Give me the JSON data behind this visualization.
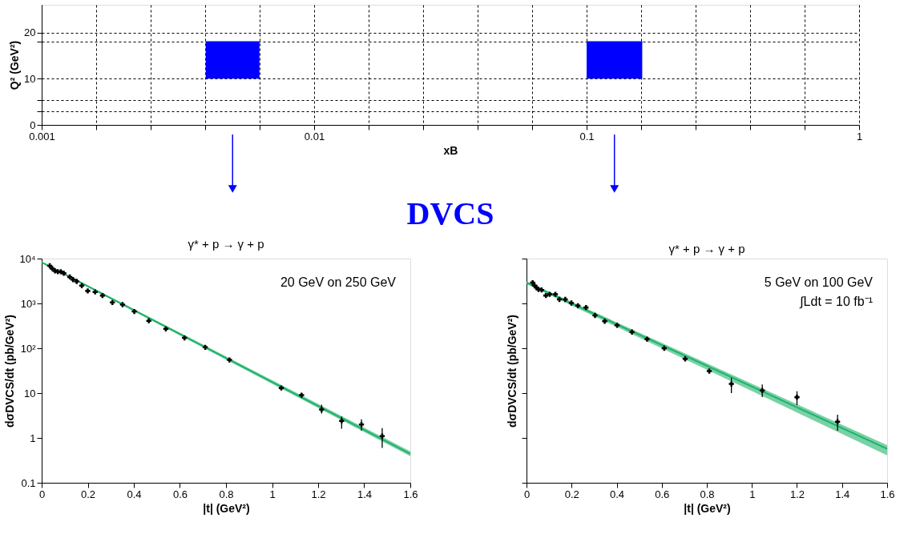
{
  "chart_data": [
    {
      "type": "bar",
      "xlabel": "xB",
      "ylabel": "Q² (GeV²)",
      "log": "x",
      "grid": true,
      "color": "#0000ff",
      "x": [
        0.00502,
        0.1265
      ],
      "base": [
        10,
        10
      ],
      "values": [
        8,
        8
      ],
      "xerrors": [
        [
          0.004,
          0.0063
        ],
        [
          0.1,
          0.16
        ]
      ],
      "xlim": [
        0.001,
        1
      ],
      "ylim": [
        0,
        26
      ],
      "xticks": [
        0.001,
        {
          "value": 0.00158,
          "label": null
        },
        {
          "value": 0.00251,
          "label": null
        },
        {
          "value": 0.00398,
          "label": null
        },
        {
          "value": 0.00631,
          "label": null
        },
        0.01,
        {
          "value": 0.0158,
          "label": null
        },
        {
          "value": 0.0251,
          "label": null
        },
        {
          "value": 0.0398,
          "label": null
        },
        {
          "value": 0.0631,
          "label": null
        },
        0.1,
        {
          "value": 0.158,
          "label": null
        },
        {
          "value": 0.251,
          "label": null
        },
        {
          "value": 0.398,
          "label": null
        },
        {
          "value": 0.631,
          "label": null
        },
        1
      ],
      "yticks": [
        0,
        {
          "value": 3,
          "label": null
        },
        {
          "value": 5.3,
          "label": null
        },
        10,
        {
          "value": 18,
          "label": null
        },
        20
      ],
      "annotations": [
        "DVCS"
      ]
    },
    {
      "type": "scatter",
      "title": "γ* + p → γ + p",
      "xlabel": "|t| (GeV²)",
      "ylabel": "dσDVCS/dt (pb/GeV²)",
      "log": "y",
      "xlim": [
        0,
        1.6
      ],
      "ylim": [
        0.1,
        10000
      ],
      "xticks": [
        0,
        0.2,
        0.4,
        0.6,
        0.8,
        1,
        1.2,
        1.4,
        1.6
      ],
      "yticks": [
        0.1,
        1,
        10,
        {
          "value": 100,
          "label": "10²"
        },
        {
          "value": 1000,
          "label": "10³"
        },
        {
          "value": 10000,
          "label": "10⁴"
        }
      ],
      "annotations": [
        "20 GeV on 250 GeV"
      ],
      "series": [
        {
          "type": "line",
          "color": "#1fb36a",
          "x": [
            0,
            1.6
          ],
          "values": [
            8300,
            0.44
          ],
          "lower": [
            8000,
            0.39
          ],
          "upper": [
            8600,
            0.5
          ]
        },
        {
          "type": "scatter",
          "marker": "cross",
          "color": "#000000",
          "x": [
            0.035,
            0.046,
            0.058,
            0.07,
            0.083,
            0.096,
            0.122,
            0.136,
            0.152,
            0.174,
            0.2,
            0.232,
            0.264,
            0.307,
            0.351,
            0.402,
            0.465,
            0.539,
            0.62,
            0.71,
            0.815,
            1.04,
            1.128,
            1.215,
            1.302,
            1.388,
            1.478
          ],
          "values": [
            6900,
            6000,
            5300,
            5100,
            5100,
            4700,
            3900,
            3400,
            3100,
            2500,
            1900,
            1800,
            1500,
            1050,
            940,
            660,
            410,
            270,
            170,
            105,
            55,
            13,
            9,
            4.3,
            2.4,
            2.0,
            1.1
          ],
          "errors": [
            null,
            null,
            null,
            null,
            null,
            null,
            null,
            null,
            null,
            null,
            null,
            null,
            null,
            null,
            null,
            null,
            null,
            null,
            null,
            null,
            null,
            null,
            null,
            [
              3.5,
              5.5
            ],
            [
              1.6,
              3.0
            ],
            [
              1.45,
              2.6
            ],
            [
              0.6,
              1.65
            ]
          ]
        }
      ]
    },
    {
      "type": "scatter",
      "title": "γ* + p → γ + p",
      "xlabel": "|t| (GeV²)",
      "ylabel": "dσDVCS/dt (pb/GeV²)",
      "log": "y",
      "tick_labels": "x",
      "xlim": [
        0,
        1.6
      ],
      "ylim": [
        0.1,
        10000
      ],
      "xticks": [
        0,
        0.2,
        0.4,
        0.6,
        0.8,
        1,
        1.2,
        1.4,
        1.6
      ],
      "yticks": [
        {
          "value": 0.1,
          "label": null
        },
        {
          "value": 1,
          "label": null
        },
        {
          "value": 10,
          "label": null
        },
        {
          "value": 100,
          "label": null
        },
        {
          "value": 1000,
          "label": null
        },
        {
          "value": 10000,
          "label": null
        }
      ],
      "annotations": [
        "5 GeV on 100 GeV",
        "∫Ldt = 10 fb⁻¹"
      ],
      "series": [
        {
          "type": "line",
          "color": "#1fb36a",
          "x": [
            0,
            1.6
          ],
          "values": [
            2900,
            0.57
          ],
          "lower": [
            2700,
            0.41
          ],
          "upper": [
            3100,
            0.69
          ]
        },
        {
          "type": "scatter",
          "marker": "cross",
          "color": "#000000",
          "x": [
            0.027,
            0.036,
            0.044,
            0.053,
            0.067,
            0.086,
            0.103,
            0.128,
            0.146,
            0.172,
            0.199,
            0.228,
            0.264,
            0.304,
            0.347,
            0.402,
            0.468,
            0.535,
            0.611,
            0.704,
            0.811,
            0.909,
            1.046,
            1.2,
            1.38
          ],
          "values": [
            2900,
            2500,
            2250,
            2050,
            2000,
            1500,
            1600,
            1600,
            1230,
            1230,
            1020,
            890,
            810,
            540,
            400,
            325,
            230,
            160,
            100,
            58,
            31,
            16,
            11.4,
            8.1,
            2.3
          ],
          "errors": [
            null,
            null,
            null,
            null,
            null,
            null,
            null,
            null,
            null,
            null,
            null,
            null,
            null,
            null,
            null,
            null,
            null,
            null,
            null,
            null,
            null,
            [
              10,
              22
            ],
            [
              8.1,
              15.5
            ],
            [
              5.4,
              11
            ],
            [
              1.45,
              3.3
            ]
          ]
        }
      ]
    }
  ]
}
